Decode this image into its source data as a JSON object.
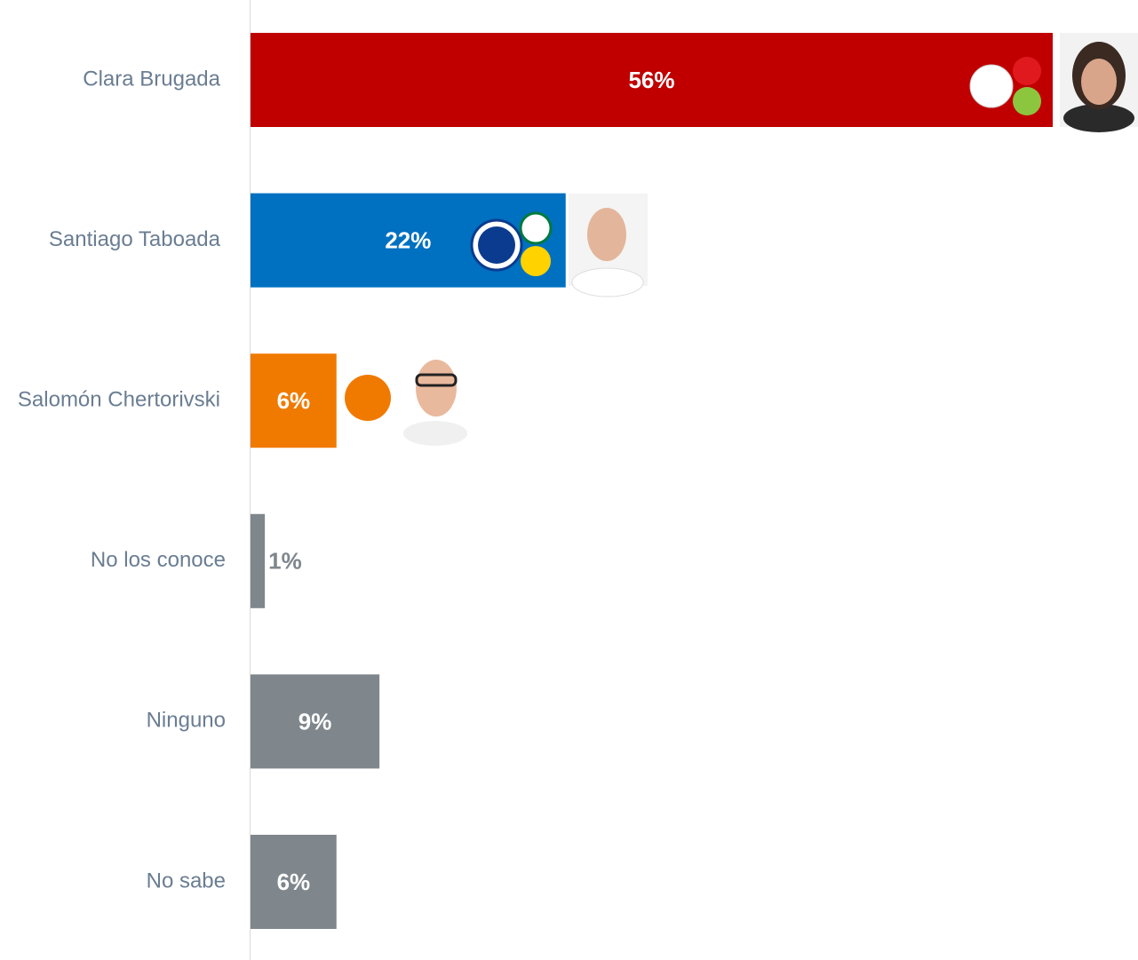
{
  "chart_data": {
    "type": "bar",
    "orientation": "horizontal",
    "categories": [
      "Clara Brugada",
      "Santiago Taboada",
      "Salomón Chertorivski",
      "No los conoce",
      "Ninguno",
      "No sabe"
    ],
    "values": [
      56,
      22,
      6,
      1,
      9,
      6
    ],
    "value_labels": [
      "56%",
      "22%",
      "6%",
      "1%",
      "9%",
      "6%"
    ],
    "colors": [
      "#c00000",
      "#0070c0",
      "#f07a00",
      "#7f868c",
      "#7f868c",
      "#7f868c"
    ]
  }
}
